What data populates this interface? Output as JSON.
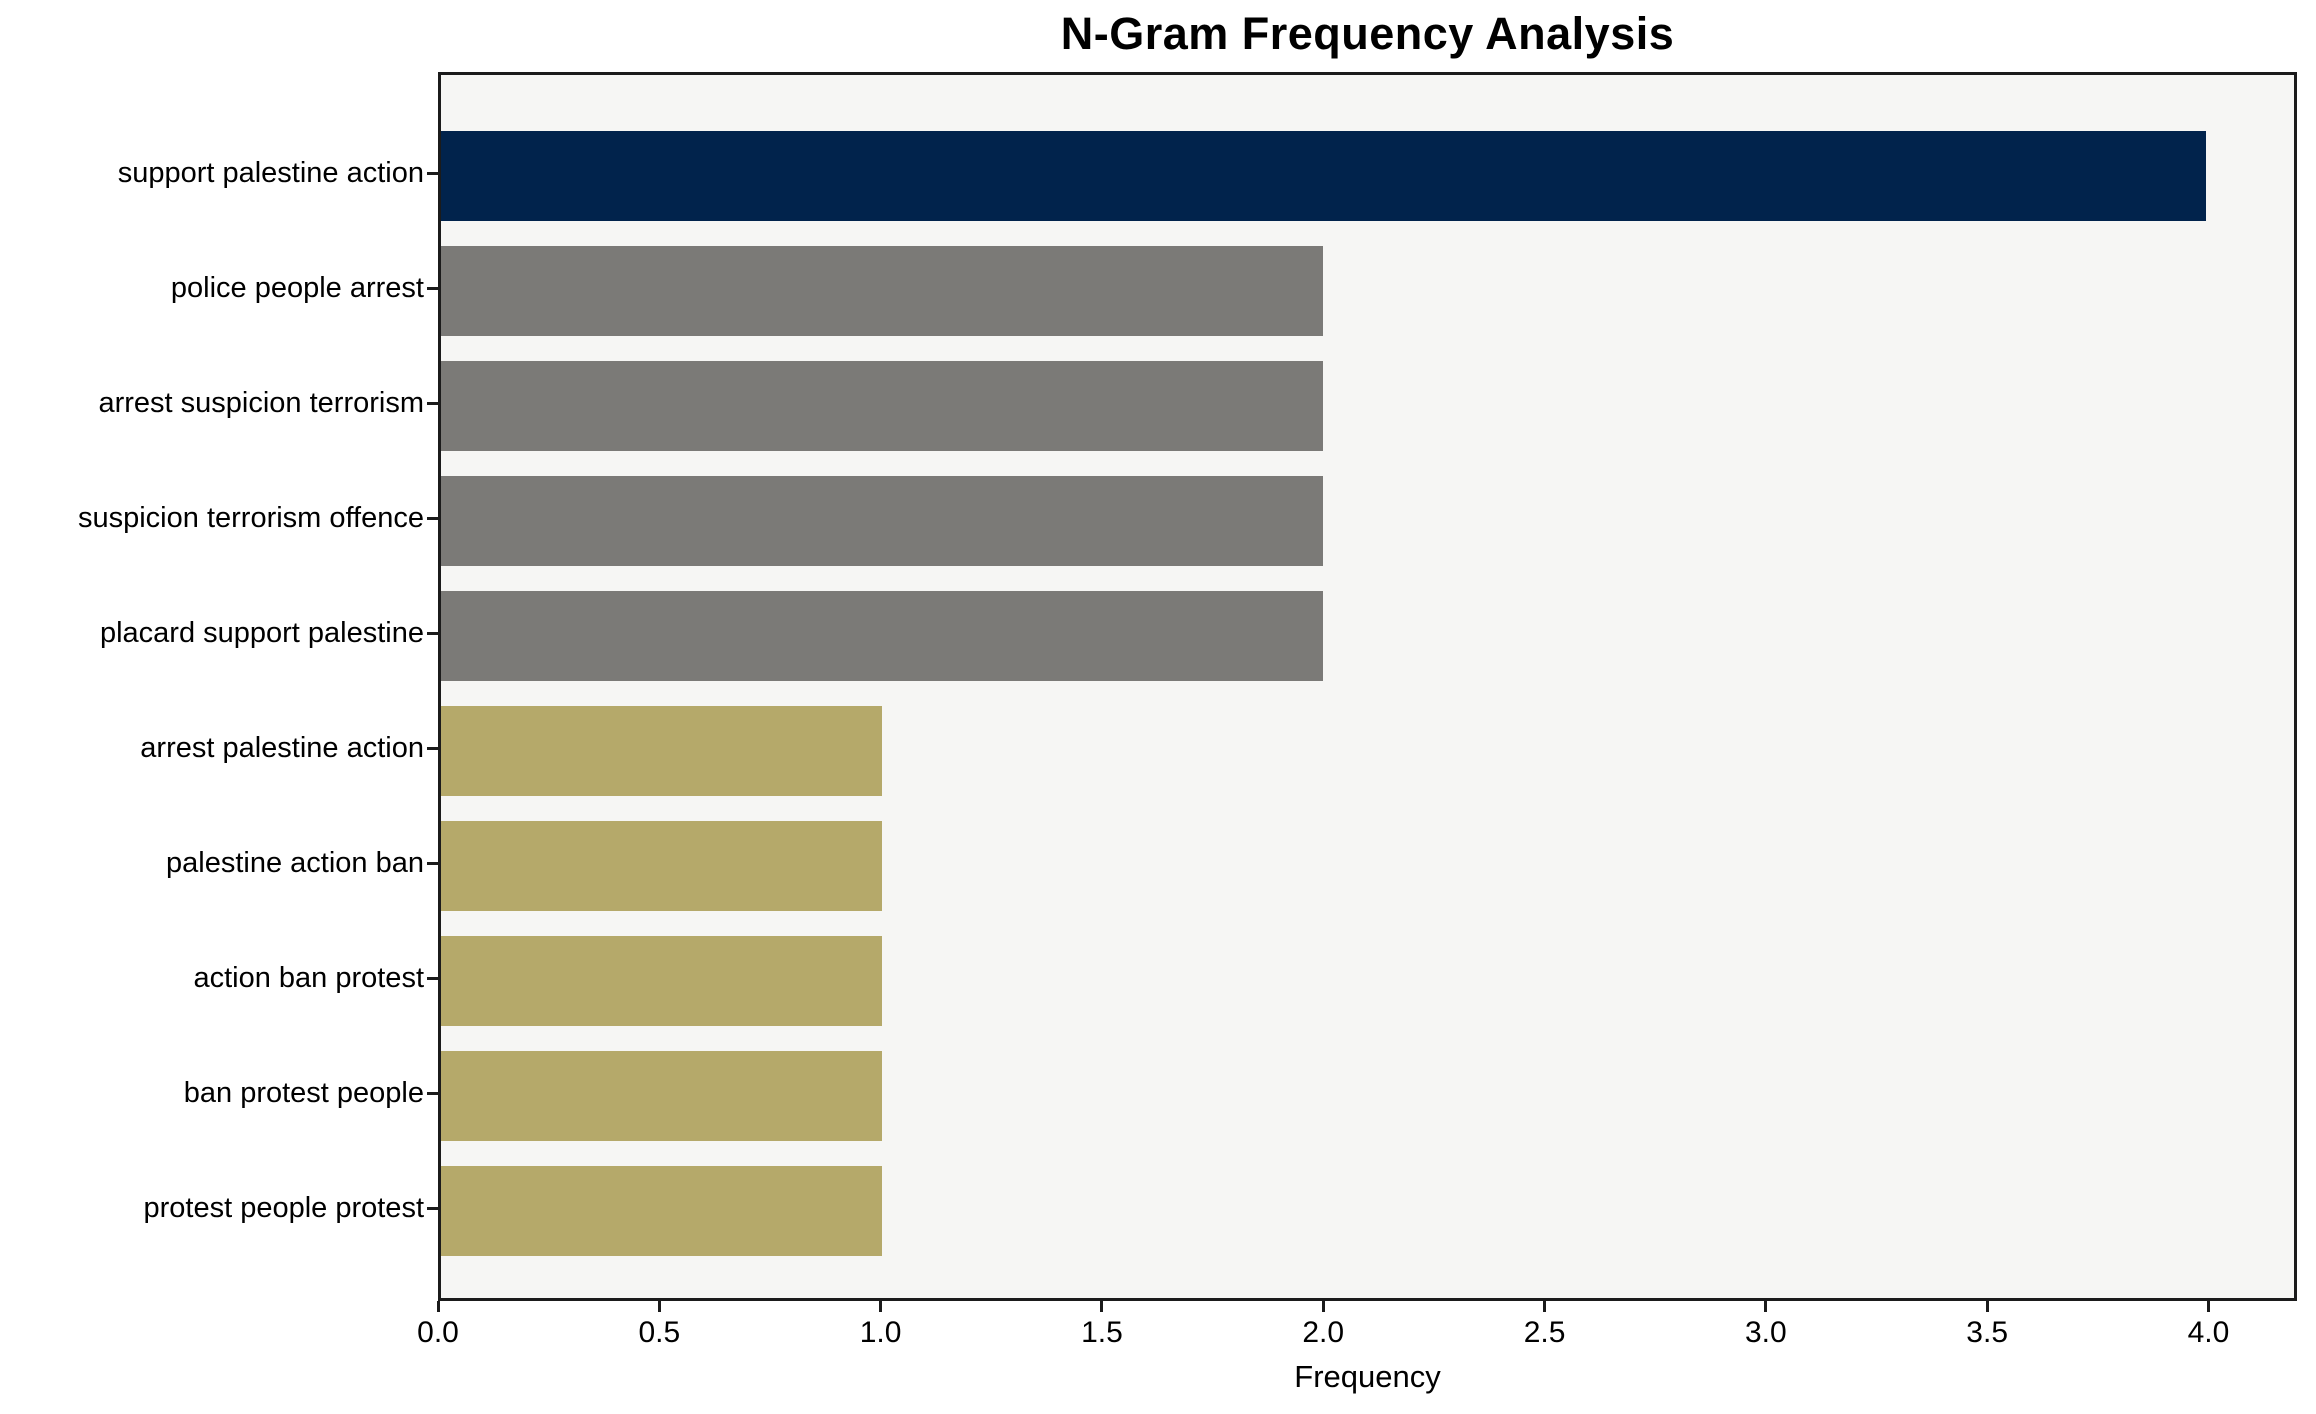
{
  "figure": {
    "background": "#ffffff",
    "plot_background": "#f6f6f4",
    "spine_color": "#1b1b1b",
    "text_color": "#000000"
  },
  "chart_data": {
    "type": "bar",
    "orientation": "horizontal",
    "title": "N-Gram Frequency Analysis",
    "xlabel": "Frequency",
    "ylabel": "",
    "categories": [
      "support palestine action",
      "police people arrest",
      "arrest suspicion terrorism",
      "suspicion terrorism offence",
      "placard support palestine",
      "arrest palestine action",
      "palestine action ban",
      "action ban protest",
      "ban protest people",
      "protest people protest"
    ],
    "values": [
      4,
      2,
      2,
      2,
      2,
      1,
      1,
      1,
      1,
      1
    ],
    "bar_colors": [
      "#01234c",
      "#7b7a77",
      "#7b7a77",
      "#7b7a77",
      "#7b7a77",
      "#b5a96a",
      "#b5a96a",
      "#b5a96a",
      "#b5a96a",
      "#b5a96a"
    ],
    "color_legend": {
      "navy": "#01234c",
      "gray": "#7b7a77",
      "khaki": "#b5a96a"
    },
    "x_ticks": [
      0.0,
      0.5,
      1.0,
      1.5,
      2.0,
      2.5,
      3.0,
      3.5,
      4.0
    ],
    "x_tick_labels": [
      "0.0",
      "0.5",
      "1.0",
      "1.5",
      "2.0",
      "2.5",
      "3.0",
      "3.5",
      "4.0"
    ],
    "xlim": [
      0,
      4.2
    ],
    "grid": false,
    "legend": false
  }
}
